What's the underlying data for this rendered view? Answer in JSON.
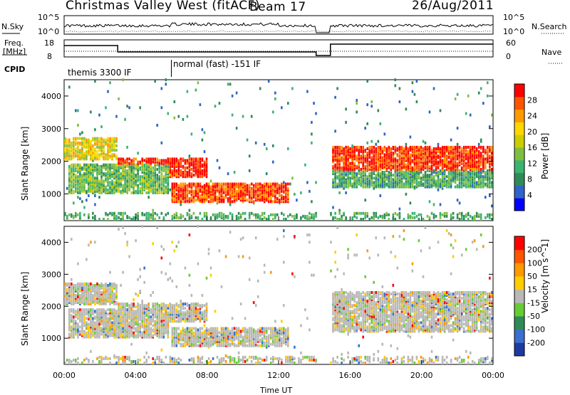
{
  "header": {
    "station": "Christmas Valley West (fitACF)",
    "beam": "Beam 17",
    "date": "26/Aug/2011"
  },
  "top_panels": {
    "nsky_label": "N.Sky",
    "nsky_ticks": [
      "10^5",
      "10^0"
    ],
    "nsearch_label": "N.Search",
    "nsearch_ticks": [
      "10^5",
      "10^0"
    ],
    "freq_label": "Freq.",
    "freq_unit": "[MHz]",
    "freq_ticks": [
      "18",
      "8"
    ],
    "nave_label": "Nave",
    "nave_ticks": [
      "60",
      "0"
    ],
    "cpid_label": "CPID",
    "cpid_modes": [
      "themis 3300 IF",
      "normal (fast) -151 IF"
    ]
  },
  "colors": {
    "power": [
      "#0000ff",
      "#2f64c8",
      "#2e8b57",
      "#3cb371",
      "#7fbf3f",
      "#cccc00",
      "#ffd700",
      "#ff9900",
      "#ff5500",
      "#ff0000"
    ],
    "velocity": [
      "#1e3aa0",
      "#3a6fd0",
      "#2e8b57",
      "#66cc33",
      "#b8b8b8",
      "#ffcc00",
      "#ff9900",
      "#ff5500",
      "#ff0000"
    ],
    "frame": "#000000"
  },
  "chart_data": [
    {
      "type": "heatmap",
      "title": "Power",
      "ylabel": "Slant Range [km]",
      "yticks": [
        "4000",
        "3000",
        "2000",
        "1000"
      ],
      "ylim": [
        180,
        4500
      ],
      "colorbar_label": "Power [dB]",
      "colorbar_ticks": [
        "28",
        "24",
        "20",
        "16",
        "12",
        "8",
        "4"
      ],
      "colorbar_range": [
        0,
        30
      ],
      "bands": [
        {
          "t_start": 0.0,
          "t_end": 3.0,
          "range_center": 2350,
          "range_width": 350,
          "power": 18
        },
        {
          "t_start": 0.2,
          "t_end": 5.8,
          "range_center": 1400,
          "range_width": 450,
          "power": 12
        },
        {
          "t_start": 3.0,
          "t_end": 8.0,
          "range_center": 1750,
          "range_width": 300,
          "power": 28
        },
        {
          "t_start": 6.0,
          "t_end": 12.5,
          "range_center": 1000,
          "range_width": 300,
          "power": 26
        },
        {
          "t_start": 14.9,
          "t_end": 24.0,
          "range_center": 2050,
          "range_width": 350,
          "power": 27
        },
        {
          "t_start": 14.9,
          "t_end": 24.0,
          "range_center": 1450,
          "range_width": 300,
          "power": 10
        }
      ]
    },
    {
      "type": "heatmap",
      "title": "Velocity",
      "ylabel": "Slant Range [km]",
      "yticks": [
        "4000",
        "3000",
        "2000",
        "1000"
      ],
      "ylim": [
        180,
        4500
      ],
      "colorbar_label": "Velocity [m s^-1]",
      "colorbar_ticks": [
        "200",
        "100",
        "50",
        "15",
        "-15",
        "-50",
        "-100",
        "-200"
      ],
      "colorbar_range": [
        -250,
        250
      ],
      "xlabel": "Time UT",
      "xticks": [
        "00:00",
        "04:00",
        "08:00",
        "12:00",
        "16:00",
        "20:00",
        "00:00"
      ],
      "xlim": [
        0,
        24
      ]
    }
  ]
}
